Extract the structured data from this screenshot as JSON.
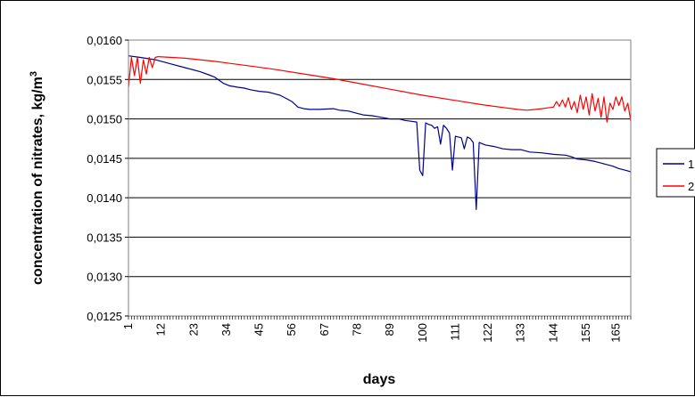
{
  "chart_data": {
    "type": "line",
    "xlabel": "days",
    "ylabel": "concentration of nitrates, kg/m",
    "ylabel_sup": "3",
    "ylim": [
      0.0125,
      0.016
    ],
    "xlim": [
      1,
      170
    ],
    "y_ticks": [
      "0,0125",
      "0,0130",
      "0,0135",
      "0,0140",
      "0,0145",
      "0,0150",
      "0,0155",
      "0,0160"
    ],
    "y_tick_values": [
      0.0125,
      0.013,
      0.0135,
      0.014,
      0.0145,
      0.015,
      0.0155,
      0.016
    ],
    "x_ticks": [
      "1",
      "12",
      "23",
      "34",
      "45",
      "56",
      "67",
      "78",
      "89",
      "100",
      "111",
      "122",
      "133",
      "144",
      "155",
      "165"
    ],
    "x_tick_values": [
      1,
      12,
      23,
      34,
      45,
      56,
      67,
      78,
      89,
      100,
      111,
      122,
      133,
      144,
      155,
      165
    ],
    "grid": true,
    "legend_position": "right",
    "series": [
      {
        "name": "1",
        "color": "#00008b",
        "points": [
          [
            1,
            0.0158
          ],
          [
            5,
            0.01578
          ],
          [
            10,
            0.01575
          ],
          [
            15,
            0.0157
          ],
          [
            20,
            0.01565
          ],
          [
            25,
            0.0156
          ],
          [
            28,
            0.01556
          ],
          [
            30,
            0.01553
          ],
          [
            33,
            0.01545
          ],
          [
            35,
            0.01542
          ],
          [
            38,
            0.0154
          ],
          [
            40,
            0.01539
          ],
          [
            42,
            0.01537
          ],
          [
            45,
            0.01535
          ],
          [
            48,
            0.01534
          ],
          [
            50,
            0.01532
          ],
          [
            52,
            0.0153
          ],
          [
            54,
            0.01526
          ],
          [
            56,
            0.01522
          ],
          [
            58,
            0.01515
          ],
          [
            60,
            0.01513
          ],
          [
            62,
            0.01512
          ],
          [
            65,
            0.01512
          ],
          [
            70,
            0.01513
          ],
          [
            72,
            0.01511
          ],
          [
            75,
            0.0151
          ],
          [
            78,
            0.01507
          ],
          [
            80,
            0.01505
          ],
          [
            83,
            0.01504
          ],
          [
            86,
            0.01502
          ],
          [
            89,
            0.015
          ],
          [
            92,
            0.015
          ],
          [
            94,
            0.01498
          ],
          [
            96,
            0.01497
          ],
          [
            98,
            0.01496
          ],
          [
            99,
            0.01435
          ],
          [
            100,
            0.01428
          ],
          [
            101,
            0.01495
          ],
          [
            102,
            0.01493
          ],
          [
            103,
            0.01492
          ],
          [
            104,
            0.01488
          ],
          [
            105,
            0.0149
          ],
          [
            106,
            0.01468
          ],
          [
            107,
            0.01492
          ],
          [
            108,
            0.01488
          ],
          [
            109,
            0.01482
          ],
          [
            110,
            0.01435
          ],
          [
            111,
            0.01478
          ],
          [
            113,
            0.01476
          ],
          [
            114,
            0.01462
          ],
          [
            115,
            0.01477
          ],
          [
            116,
            0.01475
          ],
          [
            117,
            0.0147
          ],
          [
            118,
            0.01385
          ],
          [
            119,
            0.0147
          ],
          [
            121,
            0.01467
          ],
          [
            124,
            0.01465
          ],
          [
            127,
            0.01462
          ],
          [
            130,
            0.01461
          ],
          [
            133,
            0.01461
          ],
          [
            136,
            0.01458
          ],
          [
            140,
            0.01457
          ],
          [
            144,
            0.01455
          ],
          [
            148,
            0.01454
          ],
          [
            150,
            0.01452
          ],
          [
            152,
            0.01449
          ],
          [
            155,
            0.01448
          ],
          [
            158,
            0.01446
          ],
          [
            160,
            0.01444
          ],
          [
            162,
            0.01442
          ],
          [
            164,
            0.0144
          ],
          [
            166,
            0.01437
          ],
          [
            168,
            0.01435
          ],
          [
            170,
            0.01433
          ]
        ]
      },
      {
        "name": "2",
        "color": "#ff0000",
        "points": [
          [
            1,
            0.0154
          ],
          [
            2,
            0.01578
          ],
          [
            3,
            0.01555
          ],
          [
            4,
            0.01578
          ],
          [
            5,
            0.01545
          ],
          [
            6,
            0.01575
          ],
          [
            7,
            0.01557
          ],
          [
            8,
            0.01578
          ],
          [
            9,
            0.01565
          ],
          [
            10,
            0.01578
          ],
          [
            11,
            0.01579
          ],
          [
            20,
            0.01577
          ],
          [
            30,
            0.01573
          ],
          [
            40,
            0.01568
          ],
          [
            50,
            0.01563
          ],
          [
            60,
            0.01557
          ],
          [
            70,
            0.01551
          ],
          [
            80,
            0.01544
          ],
          [
            90,
            0.01537
          ],
          [
            100,
            0.0153
          ],
          [
            110,
            0.01524
          ],
          [
            120,
            0.01518
          ],
          [
            128,
            0.01514
          ],
          [
            132,
            0.01512
          ],
          [
            135,
            0.01511
          ],
          [
            138,
            0.01512
          ],
          [
            140,
            0.01513
          ],
          [
            142,
            0.01514
          ],
          [
            144,
            0.01515
          ],
          [
            145,
            0.01522
          ],
          [
            146,
            0.01516
          ],
          [
            147,
            0.01524
          ],
          [
            148,
            0.01515
          ],
          [
            149,
            0.01527
          ],
          [
            150,
            0.01512
          ],
          [
            151,
            0.01522
          ],
          [
            152,
            0.01508
          ],
          [
            153,
            0.0153
          ],
          [
            154,
            0.01512
          ],
          [
            155,
            0.01528
          ],
          [
            156,
            0.01505
          ],
          [
            157,
            0.01532
          ],
          [
            158,
            0.0151
          ],
          [
            159,
            0.01526
          ],
          [
            160,
            0.01502
          ],
          [
            161,
            0.01528
          ],
          [
            162,
            0.01496
          ],
          [
            163,
            0.0152
          ],
          [
            164,
            0.01512
          ],
          [
            165,
            0.01528
          ],
          [
            166,
            0.01517
          ],
          [
            167,
            0.01528
          ],
          [
            168,
            0.0151
          ],
          [
            169,
            0.0152
          ],
          [
            170,
            0.01497
          ]
        ]
      }
    ]
  }
}
